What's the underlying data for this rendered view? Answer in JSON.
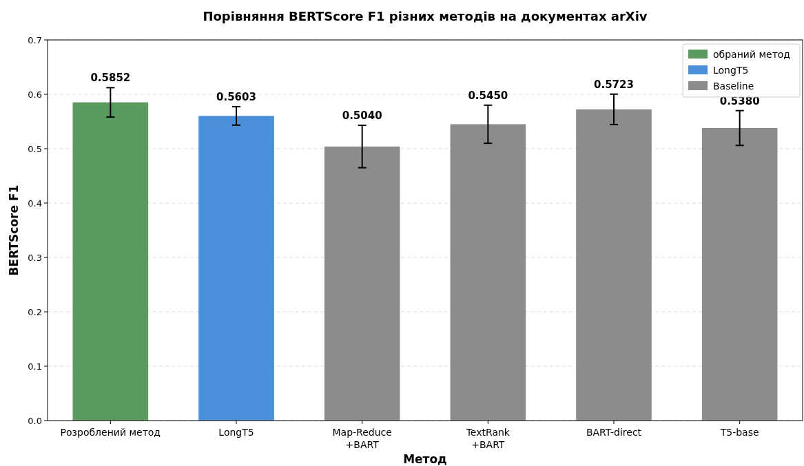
{
  "chart_data": {
    "type": "bar",
    "title": "Порівняння BERTScore F1 різних методів на документах arXiv",
    "xlabel": "Метод",
    "ylabel": "BERTScore F1",
    "categories": [
      "Розроблений метод",
      "LongT5",
      "Map-Reduce\n+BART",
      "TextRank\n+BART",
      "BART-direct",
      "T5-base"
    ],
    "series": [
      {
        "name": "обраний метод",
        "color": "#5a9a5e",
        "values": [
          0.5852,
          null,
          null,
          null,
          null,
          null
        ],
        "errors": [
          0.027,
          null,
          null,
          null,
          null,
          null
        ],
        "value_labels": [
          "0.5852",
          null,
          null,
          null,
          null,
          null
        ]
      },
      {
        "name": "LongT5",
        "color": "#4a90d9",
        "values": [
          null,
          0.5603,
          null,
          null,
          null,
          null
        ],
        "errors": [
          null,
          0.017,
          null,
          null,
          null,
          null
        ],
        "value_labels": [
          null,
          "0.5603",
          null,
          null,
          null,
          null
        ]
      },
      {
        "name": "Baseline",
        "color": "#8c8c8c",
        "values": [
          null,
          null,
          0.504,
          0.545,
          0.5723,
          0.538
        ],
        "errors": [
          null,
          null,
          0.039,
          0.035,
          0.028,
          0.032
        ],
        "value_labels": [
          null,
          null,
          "0.5040",
          "0.5450",
          "0.5723",
          "0.5380"
        ]
      }
    ],
    "ylim": [
      0,
      0.7
    ],
    "yticks": [
      {
        "value": 0,
        "label": "0.0"
      },
      0.1,
      0.2,
      0.3,
      0.4,
      0.5,
      0.6,
      0.7
    ],
    "grid": "y",
    "legend": "top right"
  }
}
